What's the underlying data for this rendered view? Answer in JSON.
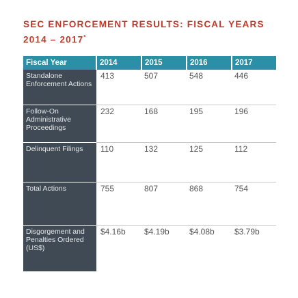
{
  "title": {
    "text": "SEC ENFORCEMENT RESULTS: FISCAL YEARS 2014 – 2017",
    "footnote_mark": "*"
  },
  "table": {
    "headers": [
      "Fiscal Year",
      "2014",
      "2015",
      "2016",
      "2017"
    ],
    "rows": [
      {
        "label": "Standalone Enforcement Actions",
        "values": [
          "413",
          "507",
          "548",
          "446"
        ]
      },
      {
        "label": "Follow-On Administrative Proceedings",
        "values": [
          "232",
          "168",
          "195",
          "196"
        ]
      },
      {
        "label": "Delinquent Filings",
        "values": [
          "110",
          "132",
          "125",
          "112"
        ]
      },
      {
        "label": "Total Actions",
        "values": [
          "755",
          "807",
          "868",
          "754"
        ]
      },
      {
        "label": "Disgorgement and Penalties Ordered (US$)",
        "values": [
          "$4.16b",
          "$4.19b",
          "$4.08b",
          "$3.79b"
        ]
      }
    ]
  },
  "colors": {
    "title": "#c0392b",
    "header_bg": "#2a8fa7",
    "label_bg": "#3f4a54"
  }
}
